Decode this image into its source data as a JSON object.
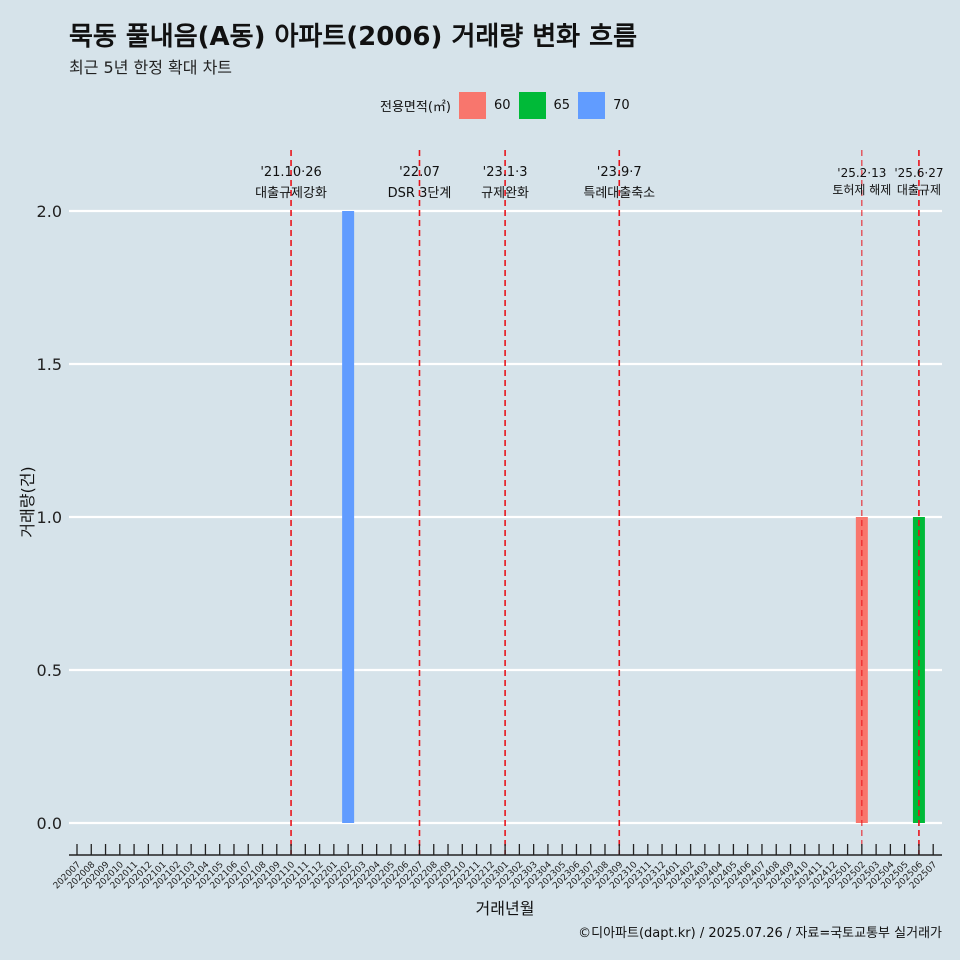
{
  "title": "묵동 풀내음(A동) 아파트(2006) 거래량 변화 흐름",
  "subtitle": "최근 5년 한정 확대 차트",
  "caption": "©디아파트(dapt.kr) / 2025.07.26 / 자료=국토교통부 실거래가",
  "legend": {
    "title": "전용면적(㎡)",
    "items": [
      {
        "label": "60",
        "color": "#f8766d"
      },
      {
        "label": "65",
        "color": "#00ba38"
      },
      {
        "label": "70",
        "color": "#619cff"
      }
    ]
  },
  "chart_data": {
    "type": "bar",
    "xlabel": "거래년월",
    "ylabel": "거래량(건)",
    "ylim": [
      0,
      2
    ],
    "yticks": [
      "0.0",
      "0.5",
      "1.0",
      "1.5",
      "2.0"
    ],
    "categories": [
      "202007",
      "202008",
      "202009",
      "202010",
      "202011",
      "202012",
      "202101",
      "202102",
      "202103",
      "202104",
      "202105",
      "202106",
      "202107",
      "202108",
      "202109",
      "202110",
      "202111",
      "202112",
      "202201",
      "202202",
      "202203",
      "202204",
      "202205",
      "202206",
      "202207",
      "202208",
      "202209",
      "202210",
      "202211",
      "202212",
      "202301",
      "202302",
      "202303",
      "202304",
      "202305",
      "202306",
      "202307",
      "202308",
      "202309",
      "202310",
      "202311",
      "202312",
      "202401",
      "202402",
      "202403",
      "202404",
      "202405",
      "202406",
      "202407",
      "202408",
      "202409",
      "202410",
      "202411",
      "202412",
      "202501",
      "202502",
      "202503",
      "202504",
      "202505",
      "202506",
      "202507"
    ],
    "series": [
      {
        "name": "60",
        "color": "#f8766d",
        "points": [
          {
            "x": "202502",
            "y": 1
          }
        ]
      },
      {
        "name": "65",
        "color": "#00ba38",
        "points": [
          {
            "x": "202506",
            "y": 1
          }
        ]
      },
      {
        "name": "70",
        "color": "#619cff",
        "points": [
          {
            "x": "202202",
            "y": 2
          }
        ]
      }
    ],
    "annotations": [
      {
        "x": "202110",
        "date": "'21.10·26",
        "label": "대출규제강화"
      },
      {
        "x": "202207",
        "date": "'22.07",
        "label": "DSR 3단계"
      },
      {
        "x": "202301",
        "date": "'23.1·3",
        "label": "규제완화"
      },
      {
        "x": "202309",
        "date": "'23.9·7",
        "label": "특례대출축소"
      },
      {
        "x": "202502",
        "date": "'25.2·13",
        "label": "토허제 해제"
      },
      {
        "x": "202506",
        "date": "'25.6·27",
        "label": "대출규제"
      }
    ]
  }
}
